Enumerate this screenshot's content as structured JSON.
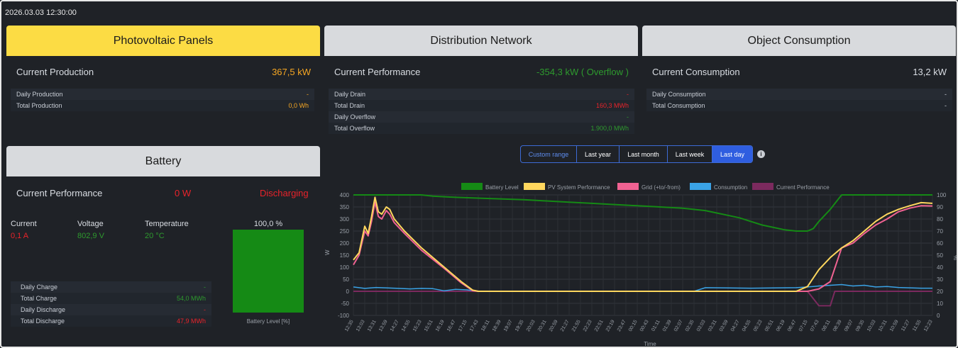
{
  "timestamp": "2026.03.03 12:30:00",
  "pv": {
    "title": "Photovoltaic Panels",
    "main_label": "Current Production",
    "main_value": "367,5 kW",
    "rows": [
      {
        "label": "Daily Production",
        "value": "-"
      },
      {
        "label": "Total Production",
        "value": "0,0 Wh"
      }
    ]
  },
  "grid": {
    "title": "Distribution Network",
    "main_label": "Current Performance",
    "main_value": "-354,3 kW ( Overflow )",
    "rows": [
      {
        "label": "Daily Drain",
        "value": "-"
      },
      {
        "label": "Total Drain",
        "value": "160,3 MWh"
      },
      {
        "label": "Daily Overflow",
        "value": "-"
      },
      {
        "label": "Total Overflow",
        "value": "1.900,0 MWh"
      }
    ]
  },
  "consumption": {
    "title": "Object Consumption",
    "main_label": "Current Consumption",
    "main_value": "13,2 kW",
    "rows": [
      {
        "label": "Daily Consumption",
        "value": "-"
      },
      {
        "label": "Total Consumption",
        "value": "-"
      }
    ]
  },
  "battery": {
    "title": "Battery",
    "main_label": "Current Performance",
    "main_value": "0 W",
    "state": "Discharging",
    "current_label": "Current",
    "current_value": "0,1 A",
    "voltage_label": "Voltage",
    "voltage_value": "802,9 V",
    "temp_label": "Temperature",
    "temp_value": "20 °C",
    "level_text": "100,0 %",
    "level_fraction": 1.0,
    "level_axis_label": "Battery Level [%]",
    "rows": [
      {
        "label": "Daily Charge",
        "value": "-"
      },
      {
        "label": "Total Charge",
        "value": "54,0 MWh"
      },
      {
        "label": "Daily Discharge",
        "value": "-"
      },
      {
        "label": "Total Discharge",
        "value": "47,9 MWh"
      }
    ]
  },
  "range_buttons": [
    "Custom range",
    "Last year",
    "Last month",
    "Last week",
    "Last day"
  ],
  "active_range": "Last day",
  "colors": {
    "yellow": "#fcdc44",
    "green": "#158a15",
    "orange": "#f5a623",
    "red": "#e8232a",
    "blue": "#2f5ee0"
  },
  "chart_data": {
    "type": "line",
    "xlabel": "Time",
    "ylabel_left": "W",
    "ylabel_right": "%",
    "y_left": [
      -100,
      400
    ],
    "y_right": [
      0,
      100
    ],
    "y_left_ticks": [
      "400",
      "350",
      "300",
      "250",
      "200",
      "150",
      "100",
      "50",
      "0",
      "-50",
      "-100"
    ],
    "y_right_ticks": [
      "100",
      "90",
      "80",
      "70",
      "60",
      "50",
      "40",
      "30",
      "20",
      "10",
      "0"
    ],
    "x_ticks": [
      "12:35",
      "13:03",
      "13:31",
      "13:59",
      "14:27",
      "14:55",
      "15:23",
      "15:51",
      "16:19",
      "16:47",
      "17:15",
      "17:43",
      "18:11",
      "18:39",
      "19:07",
      "19:35",
      "20:03",
      "20:31",
      "20:59",
      "21:27",
      "21:55",
      "22:23",
      "22:51",
      "23:19",
      "23:47",
      "00:15",
      "00:43",
      "01:11",
      "01:39",
      "02:07",
      "02:35",
      "03:03",
      "03:31",
      "03:59",
      "04:27",
      "04:55",
      "05:23",
      "05:51",
      "06:19",
      "06:47",
      "07:15",
      "07:43",
      "08:11",
      "08:39",
      "09:07",
      "09:35",
      "10:03",
      "10:31",
      "10:59",
      "11:27",
      "11:55",
      "12:23"
    ],
    "series": [
      {
        "name": "Battery Level",
        "axis": "right",
        "color": "#158a15",
        "values": [
          [
            0,
            100
          ],
          [
            6,
            100
          ],
          [
            7,
            99
          ],
          [
            9,
            98
          ],
          [
            12,
            97
          ],
          [
            15,
            96
          ],
          [
            17,
            95
          ],
          [
            19,
            94
          ],
          [
            21,
            93
          ],
          [
            23,
            92
          ],
          [
            25,
            91
          ],
          [
            27,
            90
          ],
          [
            29,
            89
          ],
          [
            31,
            87
          ],
          [
            32,
            85
          ],
          [
            34,
            81
          ],
          [
            35,
            78
          ],
          [
            36,
            75
          ],
          [
            37,
            73
          ],
          [
            38,
            71
          ],
          [
            39,
            70
          ],
          [
            40,
            70
          ],
          [
            40.5,
            72
          ],
          [
            41,
            78
          ],
          [
            42,
            88
          ],
          [
            43,
            100
          ],
          [
            51,
            100
          ]
        ]
      },
      {
        "name": "PV System Performance",
        "axis": "left",
        "color": "#ffd75e",
        "values": [
          [
            0,
            130
          ],
          [
            0.5,
            160
          ],
          [
            1,
            270
          ],
          [
            1.3,
            240
          ],
          [
            1.6,
            310
          ],
          [
            1.9,
            390
          ],
          [
            2.2,
            330
          ],
          [
            2.5,
            320
          ],
          [
            2.9,
            350
          ],
          [
            3.2,
            340
          ],
          [
            3.6,
            300
          ],
          [
            4.5,
            250
          ],
          [
            6,
            180
          ],
          [
            8,
            100
          ],
          [
            9.5,
            40
          ],
          [
            10.5,
            5
          ],
          [
            11,
            0
          ],
          [
            39,
            0
          ],
          [
            40,
            20
          ],
          [
            41,
            90
          ],
          [
            42,
            140
          ],
          [
            43,
            180
          ],
          [
            44,
            210
          ],
          [
            45,
            250
          ],
          [
            46,
            290
          ],
          [
            47,
            320
          ],
          [
            48,
            340
          ],
          [
            49,
            355
          ],
          [
            50,
            368
          ],
          [
            51,
            365
          ]
        ]
      },
      {
        "name": "Grid (+to/-from)",
        "axis": "left",
        "color": "#f06292",
        "values": [
          [
            0,
            110
          ],
          [
            0.5,
            150
          ],
          [
            1,
            250
          ],
          [
            1.3,
            230
          ],
          [
            1.6,
            290
          ],
          [
            1.9,
            370
          ],
          [
            2.2,
            310
          ],
          [
            2.5,
            300
          ],
          [
            2.9,
            335
          ],
          [
            3.2,
            320
          ],
          [
            3.6,
            285
          ],
          [
            4.5,
            240
          ],
          [
            6,
            170
          ],
          [
            8,
            95
          ],
          [
            9.5,
            35
          ],
          [
            10.5,
            3
          ],
          [
            11,
            0
          ],
          [
            40,
            0
          ],
          [
            41,
            10
          ],
          [
            42,
            40
          ],
          [
            42.5,
            110
          ],
          [
            43,
            180
          ],
          [
            44,
            200
          ],
          [
            45,
            240
          ],
          [
            46,
            275
          ],
          [
            47,
            300
          ],
          [
            48,
            330
          ],
          [
            49,
            345
          ],
          [
            50,
            355
          ],
          [
            51,
            354
          ]
        ]
      },
      {
        "name": "Consumption",
        "axis": "left",
        "color": "#3aa3e6",
        "values": [
          [
            0,
            18
          ],
          [
            1,
            12
          ],
          [
            2,
            16
          ],
          [
            3,
            14
          ],
          [
            4,
            12
          ],
          [
            5,
            10
          ],
          [
            6,
            12
          ],
          [
            7,
            11
          ],
          [
            8,
            2
          ],
          [
            9,
            8
          ],
          [
            10,
            6
          ],
          [
            11,
            0
          ],
          [
            20,
            0
          ],
          [
            30,
            0
          ],
          [
            31,
            15
          ],
          [
            35,
            13
          ],
          [
            39,
            15
          ],
          [
            40,
            18
          ],
          [
            41,
            22
          ],
          [
            42,
            25
          ],
          [
            43,
            28
          ],
          [
            44,
            22
          ],
          [
            45,
            25
          ],
          [
            46,
            18
          ],
          [
            47,
            20
          ],
          [
            48,
            16
          ],
          [
            50,
            13
          ],
          [
            51,
            13
          ]
        ]
      },
      {
        "name": "Current Performance",
        "axis": "left",
        "color": "#7b2a5e",
        "values": [
          [
            0,
            0
          ],
          [
            40,
            0
          ],
          [
            41,
            -60
          ],
          [
            42,
            -60
          ],
          [
            42.4,
            0
          ],
          [
            51,
            0
          ]
        ]
      }
    ]
  }
}
